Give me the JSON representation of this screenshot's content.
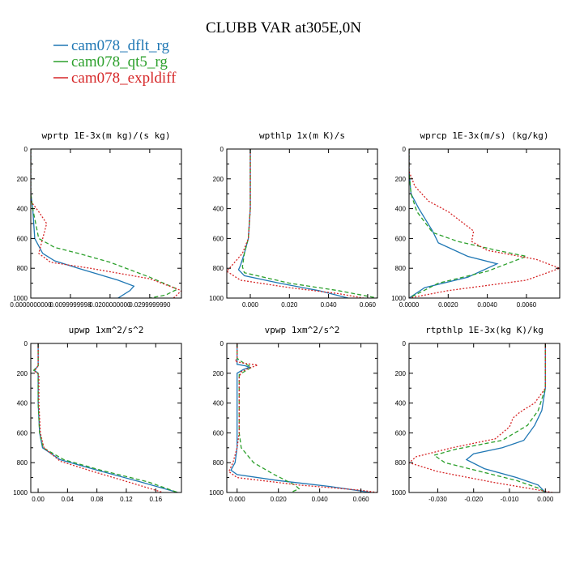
{
  "title": "CLUBB VAR at305E,0N",
  "legend": [
    {
      "name": "cam078_dflt_rg",
      "color": "#1f77b4",
      "dash": "none"
    },
    {
      "name": "cam078_qt5_rg",
      "color": "#2ca02c",
      "dash": "5,3"
    },
    {
      "name": "cam078_expldiff",
      "color": "#d62728",
      "dash": "2,2"
    }
  ],
  "chart_data": [
    {
      "type": "line",
      "title": "wprtp  1E-3x(m kg)/(s kg)",
      "xlim": [
        0,
        0.038
      ],
      "ylim": [
        1000,
        0
      ],
      "xticks": [
        0,
        0.01,
        0.02,
        0.03
      ],
      "xtick_labels": [
        "0.0000000000",
        "0.0099999998",
        "0.0200000000",
        "0.0299999990"
      ],
      "yticks": [
        0,
        200,
        400,
        600,
        800,
        1000
      ],
      "series": [
        {
          "name": "cam078_dflt_rg",
          "points": [
            [
              0,
              0
            ],
            [
              0,
              300
            ],
            [
              0.0005,
              400
            ],
            [
              0.001,
              600
            ],
            [
              0.003,
              700
            ],
            [
              0.006,
              750
            ],
            [
              0.012,
              800
            ],
            [
              0.022,
              880
            ],
            [
              0.026,
              920
            ],
            [
              0.025,
              950
            ],
            [
              0.022,
              1000
            ]
          ]
        },
        {
          "name": "cam078_qt5_rg",
          "points": [
            [
              0,
              0
            ],
            [
              0,
              300
            ],
            [
              0.0005,
              400
            ],
            [
              0.002,
              600
            ],
            [
              0.006,
              660
            ],
            [
              0.012,
              700
            ],
            [
              0.02,
              760
            ],
            [
              0.03,
              860
            ],
            [
              0.037,
              940
            ],
            [
              0.034,
              980
            ],
            [
              0.03,
              1000
            ]
          ]
        },
        {
          "name": "cam078_expldiff",
          "points": [
            [
              0,
              0
            ],
            [
              0,
              350
            ],
            [
              0.002,
              420
            ],
            [
              0.004,
              500
            ],
            [
              0.003,
              600
            ],
            [
              0.002,
              700
            ],
            [
              0.005,
              760
            ],
            [
              0.015,
              800
            ],
            [
              0.03,
              870
            ],
            [
              0.038,
              950
            ],
            [
              0.036,
              1000
            ]
          ]
        }
      ]
    },
    {
      "type": "line",
      "title": "wpthlp  1x(m K)/s",
      "xlim": [
        -0.012,
        0.065
      ],
      "ylim": [
        1000,
        0
      ],
      "xticks": [
        0,
        0.02,
        0.04,
        0.06
      ],
      "xtick_labels": [
        "0.000",
        "0.020",
        "0.040",
        "0.060"
      ],
      "yticks": [
        0,
        200,
        400,
        600,
        800,
        1000
      ],
      "series": [
        {
          "name": "cam078_dflt_rg",
          "points": [
            [
              0,
              0
            ],
            [
              0,
              400
            ],
            [
              -0.001,
              600
            ],
            [
              -0.003,
              700
            ],
            [
              -0.005,
              780
            ],
            [
              -0.006,
              810
            ],
            [
              -0.003,
              850
            ],
            [
              0.015,
              900
            ],
            [
              0.035,
              950
            ],
            [
              0.05,
              1000
            ]
          ]
        },
        {
          "name": "cam078_qt5_rg",
          "points": [
            [
              0,
              0
            ],
            [
              0,
              400
            ],
            [
              -0.001,
              600
            ],
            [
              -0.003,
              700
            ],
            [
              -0.004,
              790
            ],
            [
              -0.003,
              830
            ],
            [
              0.02,
              900
            ],
            [
              0.045,
              950
            ],
            [
              0.065,
              1000
            ]
          ]
        },
        {
          "name": "cam078_expldiff",
          "points": [
            [
              0,
              0
            ],
            [
              0,
              400
            ],
            [
              -0.001,
              600
            ],
            [
              -0.004,
              700
            ],
            [
              -0.008,
              760
            ],
            [
              -0.012,
              820
            ],
            [
              -0.005,
              880
            ],
            [
              0.02,
              930
            ],
            [
              0.045,
              970
            ],
            [
              0.058,
              1000
            ]
          ]
        }
      ]
    },
    {
      "type": "line",
      "title": "wprcp  1E-3x(m/s) (kg/kg)",
      "xlim": [
        0,
        0.0077
      ],
      "ylim": [
        1000,
        0
      ],
      "xticks": [
        0,
        0.002,
        0.004,
        0.006
      ],
      "xtick_labels": [
        "0.0000",
        "0.0020",
        "0.0040",
        "0.0060"
      ],
      "yticks": [
        0,
        200,
        400,
        600,
        800,
        1000
      ],
      "series": [
        {
          "name": "cam078_dflt_rg",
          "points": [
            [
              0,
              0
            ],
            [
              0,
              150
            ],
            [
              0.0001,
              300
            ],
            [
              0.0005,
              400
            ],
            [
              0.0012,
              550
            ],
            [
              0.0015,
              630
            ],
            [
              0.003,
              720
            ],
            [
              0.0045,
              770
            ],
            [
              0.003,
              860
            ],
            [
              0.0008,
              930
            ],
            [
              0,
              1000
            ]
          ]
        },
        {
          "name": "cam078_qt5_rg",
          "points": [
            [
              0,
              0
            ],
            [
              0,
              150
            ],
            [
              0.0001,
              300
            ],
            [
              0.0004,
              420
            ],
            [
              0.0012,
              560
            ],
            [
              0.0025,
              620
            ],
            [
              0.0045,
              680
            ],
            [
              0.006,
              720
            ],
            [
              0.004,
              820
            ],
            [
              0.0015,
              900
            ],
            [
              0,
              1000
            ]
          ]
        },
        {
          "name": "cam078_expldiff",
          "points": [
            [
              0,
              0
            ],
            [
              0,
              150
            ],
            [
              0.0003,
              250
            ],
            [
              0.001,
              350
            ],
            [
              0.002,
              420
            ],
            [
              0.0033,
              550
            ],
            [
              0.0032,
              620
            ],
            [
              0.004,
              680
            ],
            [
              0.0065,
              740
            ],
            [
              0.0077,
              800
            ],
            [
              0.006,
              880
            ],
            [
              0.002,
              950
            ],
            [
              0,
              1000
            ]
          ]
        }
      ]
    },
    {
      "type": "line",
      "title": "upwp  1xm^2/s^2",
      "xlim": [
        -0.01,
        0.195
      ],
      "ylim": [
        1000,
        0
      ],
      "xticks": [
        0,
        0.04,
        0.08,
        0.12,
        0.16
      ],
      "xtick_labels": [
        "0.00",
        "0.04",
        "0.08",
        "0.12",
        "0.16"
      ],
      "yticks": [
        0,
        200,
        400,
        600,
        800,
        1000
      ],
      "series": [
        {
          "name": "cam078_dflt_rg",
          "points": [
            [
              0,
              0
            ],
            [
              0,
              150
            ],
            [
              -0.005,
              180
            ],
            [
              0,
              200
            ],
            [
              0,
              400
            ],
            [
              0.002,
              600
            ],
            [
              0.006,
              700
            ],
            [
              0.03,
              780
            ],
            [
              0.08,
              850
            ],
            [
              0.14,
              930
            ],
            [
              0.19,
              1000
            ]
          ]
        },
        {
          "name": "cam078_qt5_rg",
          "points": [
            [
              0,
              0
            ],
            [
              0,
              150
            ],
            [
              -0.006,
              180
            ],
            [
              0,
              200
            ],
            [
              0,
              400
            ],
            [
              0.002,
              600
            ],
            [
              0.007,
              700
            ],
            [
              0.035,
              780
            ],
            [
              0.085,
              850
            ],
            [
              0.15,
              930
            ],
            [
              0.19,
              1000
            ]
          ]
        },
        {
          "name": "cam078_expldiff",
          "points": [
            [
              0,
              0
            ],
            [
              0,
              150
            ],
            [
              -0.005,
              185
            ],
            [
              0.001,
              210
            ],
            [
              0.001,
              400
            ],
            [
              0.003,
              600
            ],
            [
              0.008,
              700
            ],
            [
              0.03,
              790
            ],
            [
              0.075,
              860
            ],
            [
              0.13,
              940
            ],
            [
              0.17,
              1000
            ]
          ]
        }
      ]
    },
    {
      "type": "line",
      "title": "vpwp  1xm^2/s^2",
      "xlim": [
        -0.005,
        0.068
      ],
      "ylim": [
        1000,
        0
      ],
      "xticks": [
        0,
        0.02,
        0.04,
        0.06
      ],
      "xtick_labels": [
        "0.000",
        "0.020",
        "0.040",
        "0.060"
      ],
      "yticks": [
        0,
        200,
        400,
        600,
        800,
        1000
      ],
      "series": [
        {
          "name": "cam078_dflt_rg",
          "points": [
            [
              0,
              0
            ],
            [
              0,
              100
            ],
            [
              0,
              140
            ],
            [
              0.004,
              150
            ],
            [
              0.006,
              160
            ],
            [
              0.003,
              175
            ],
            [
              0,
              200
            ],
            [
              0,
              400
            ],
            [
              0,
              700
            ],
            [
              -0.001,
              800
            ],
            [
              -0.003,
              850
            ],
            [
              0,
              880
            ],
            [
              0.02,
              920
            ],
            [
              0.045,
              960
            ],
            [
              0.065,
              1000
            ]
          ]
        },
        {
          "name": "cam078_qt5_rg",
          "points": [
            [
              0,
              0
            ],
            [
              0,
              100
            ],
            [
              0.003,
              130
            ],
            [
              0.007,
              160
            ],
            [
              0.004,
              185
            ],
            [
              0.001,
              210
            ],
            [
              0.001,
              400
            ],
            [
              0.001,
              600
            ],
            [
              0.002,
              700
            ],
            [
              0.008,
              800
            ],
            [
              0.018,
              880
            ],
            [
              0.028,
              950
            ],
            [
              0.03,
              975
            ],
            [
              0.026,
              1000
            ]
          ]
        },
        {
          "name": "cam078_expldiff",
          "points": [
            [
              0,
              0
            ],
            [
              0,
              100
            ],
            [
              -0.001,
              120
            ],
            [
              0.004,
              135
            ],
            [
              0.01,
              145
            ],
            [
              0.006,
              165
            ],
            [
              0.002,
              190
            ],
            [
              0.001,
              230
            ],
            [
              0.001,
              400
            ],
            [
              0.001,
              600
            ],
            [
              0,
              700
            ],
            [
              -0.002,
              800
            ],
            [
              -0.004,
              860
            ],
            [
              0,
              900
            ],
            [
              0.03,
              950
            ],
            [
              0.06,
              985
            ],
            [
              0.068,
              1000
            ]
          ]
        }
      ]
    },
    {
      "type": "line",
      "title": "rtpthlp  1E-3x(kg K)/kg",
      "xlim": [
        -0.038,
        0.004
      ],
      "ylim": [
        1000,
        0
      ],
      "xticks": [
        -0.03,
        -0.02,
        -0.01,
        0
      ],
      "xtick_labels": [
        "-0.030",
        "-0.020",
        "-0.010",
        "0.000"
      ],
      "yticks": [
        0,
        200,
        400,
        600,
        800,
        1000
      ],
      "series": [
        {
          "name": "cam078_dflt_rg",
          "points": [
            [
              0,
              0
            ],
            [
              0,
              300
            ],
            [
              -0.001,
              450
            ],
            [
              -0.003,
              550
            ],
            [
              -0.006,
              650
            ],
            [
              -0.012,
              700
            ],
            [
              -0.02,
              740
            ],
            [
              -0.022,
              780
            ],
            [
              -0.017,
              840
            ],
            [
              -0.008,
              900
            ],
            [
              -0.002,
              950
            ],
            [
              0,
              1000
            ]
          ]
        },
        {
          "name": "cam078_qt5_rg",
          "points": [
            [
              0,
              0
            ],
            [
              0,
              300
            ],
            [
              -0.002,
              450
            ],
            [
              -0.005,
              550
            ],
            [
              -0.012,
              650
            ],
            [
              -0.025,
              710
            ],
            [
              -0.031,
              750
            ],
            [
              -0.028,
              800
            ],
            [
              -0.018,
              860
            ],
            [
              -0.008,
              920
            ],
            [
              -0.002,
              970
            ],
            [
              0,
              1000
            ]
          ]
        },
        {
          "name": "cam078_expldiff",
          "points": [
            [
              0,
              0
            ],
            [
              0,
              300
            ],
            [
              -0.003,
              400
            ],
            [
              -0.007,
              460
            ],
            [
              -0.009,
              500
            ],
            [
              -0.01,
              560
            ],
            [
              -0.014,
              640
            ],
            [
              -0.026,
              700
            ],
            [
              -0.036,
              760
            ],
            [
              -0.038,
              800
            ],
            [
              -0.03,
              860
            ],
            [
              -0.015,
              930
            ],
            [
              -0.004,
              975
            ],
            [
              0.002,
              1000
            ]
          ]
        }
      ]
    }
  ]
}
